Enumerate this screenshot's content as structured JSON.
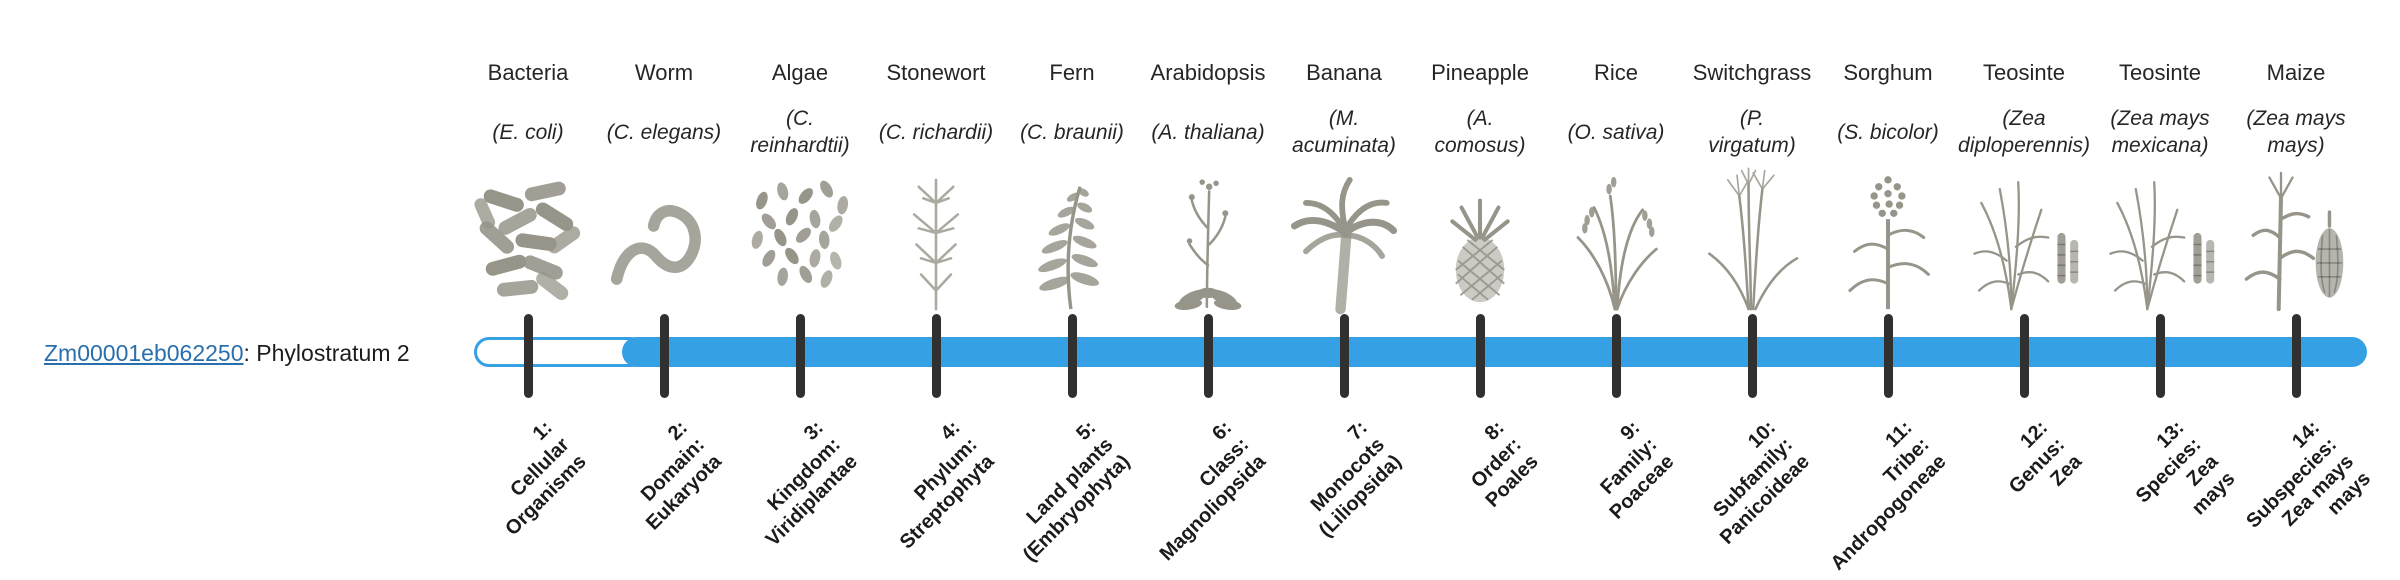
{
  "gene": {
    "id": "Zm00001eb062250",
    "suffix": ": Phylostratum 2",
    "phylostratum_value": "2"
  },
  "colors": {
    "bar": "#36a0e4",
    "tick": "#303030",
    "link": "#2a6fad",
    "text": "#1c1c1c",
    "icon": "#97958a"
  },
  "organisms": [
    {
      "name": "Bacteria",
      "sci": "(E. coli)",
      "icon": "bacteria"
    },
    {
      "name": "Worm",
      "sci": "(C. elegans)",
      "icon": "worm"
    },
    {
      "name": "Algae",
      "sci": "(C.\nreinhardtii)",
      "icon": "algae"
    },
    {
      "name": "Stonewort",
      "sci": "(C. richardii)",
      "icon": "stonewort"
    },
    {
      "name": "Fern",
      "sci": "(C. braunii)",
      "icon": "fern"
    },
    {
      "name": "Arabidopsis",
      "sci": "(A. thaliana)",
      "icon": "arabidopsis"
    },
    {
      "name": "Banana",
      "sci": "(M.\nacuminata)",
      "icon": "banana"
    },
    {
      "name": "Pineapple",
      "sci": "(A.\ncomosus)",
      "icon": "pineapple"
    },
    {
      "name": "Rice",
      "sci": "(O. sativa)",
      "icon": "rice"
    },
    {
      "name": "Switchgrass",
      "sci": "(P.\nvirgatum)",
      "icon": "switchgrass"
    },
    {
      "name": "Sorghum",
      "sci": "(S. bicolor)",
      "icon": "sorghum"
    },
    {
      "name": "Teosinte",
      "sci": "(Zea\ndiploperennis)",
      "icon": "teosinte"
    },
    {
      "name": "Teosinte",
      "sci": "(Zea mays\nmexicana)",
      "icon": "teosinte"
    },
    {
      "name": "Maize",
      "sci": "(Zea mays\nmays)",
      "icon": "maize"
    }
  ],
  "phylostrata": [
    {
      "lines": [
        "1:",
        "Cellular",
        "Organisms"
      ]
    },
    {
      "lines": [
        "2:",
        "Domain:",
        "Eukaryota"
      ]
    },
    {
      "lines": [
        "3:",
        "Kingdom:",
        "Viridiplantae"
      ]
    },
    {
      "lines": [
        "4:",
        "Phylum:",
        "Streptophyta"
      ]
    },
    {
      "lines": [
        "5:",
        "Land plants",
        "(Embryophyta)"
      ]
    },
    {
      "lines": [
        "6:",
        "Class:",
        "Magnoliopsida"
      ]
    },
    {
      "lines": [
        "7:",
        "Monocots",
        "(Liliopsida)"
      ]
    },
    {
      "lines": [
        "8:",
        "Order:",
        "Poales"
      ]
    },
    {
      "lines": [
        "9:",
        "Family:",
        "Poaceae"
      ]
    },
    {
      "lines": [
        "10:",
        "Subfamily:",
        "Panicoideae"
      ]
    },
    {
      "lines": [
        "11:",
        "Tribe:",
        "Andropogoneae"
      ]
    },
    {
      "lines": [
        "12:",
        "Genus:",
        "Zea"
      ]
    },
    {
      "lines": [
        "13:",
        "Species:",
        "Zea",
        "mays"
      ]
    },
    {
      "lines": [
        "14:",
        "Subspecies:",
        "Zea mays",
        "mays"
      ]
    }
  ]
}
